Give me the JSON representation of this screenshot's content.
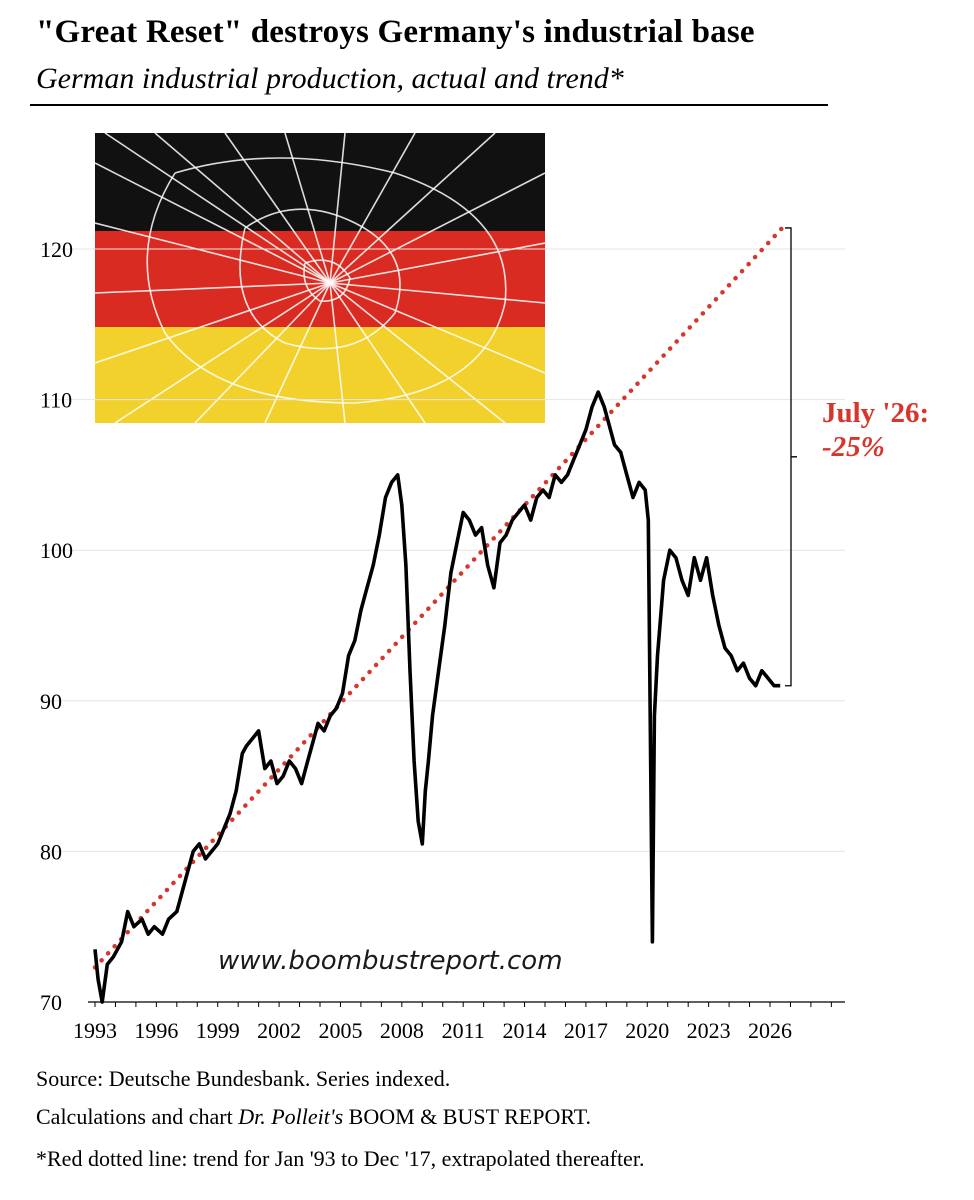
{
  "header": {
    "title": "\"Great Reset\" destroys Germany's industrial base",
    "subtitle": "German industrial production, actual and trend*"
  },
  "watermark": "www.boombustreport.com",
  "annotation": {
    "date": "July '26:",
    "change": "-25%"
  },
  "footer": {
    "source": "Source: Deutsche Bundesbank. Series indexed.",
    "calc_prefix": "Calculations and chart",
    "calc_author": "Dr. Polleit's",
    "calc_suffix": "BOOM & BUST REPORT.",
    "note": "*Red dotted line: trend for Jan '93 to Dec '17, extrapolated thereafter."
  },
  "colors": {
    "actual": "#000000",
    "trend": "#d6362b",
    "grid": "#e6e6e6",
    "flag_black": "#111111",
    "flag_red": "#d92b22",
    "flag_gold": "#f2d12c"
  },
  "chart_data": {
    "type": "line",
    "title": "German industrial production, actual and trend*",
    "xlabel": "",
    "ylabel": "",
    "xlim": [
      1993,
      2029
    ],
    "ylim": [
      70,
      127
    ],
    "yticks": [
      70,
      80,
      90,
      100,
      110,
      120
    ],
    "xticks": [
      1993,
      1996,
      1999,
      2002,
      2005,
      2008,
      2011,
      2014,
      2017,
      2020,
      2023,
      2026
    ],
    "grid": true,
    "series": [
      {
        "name": "actual",
        "style": "solid",
        "x": [
          1993.0,
          1993.15,
          1993.35,
          1993.6,
          1993.9,
          1994.3,
          1994.6,
          1994.9,
          1995.3,
          1995.6,
          1995.9,
          1996.3,
          1996.6,
          1997.0,
          1997.4,
          1997.8,
          1998.1,
          1998.4,
          1998.7,
          1999.0,
          1999.3,
          1999.6,
          1999.9,
          2000.2,
          2000.4,
          2000.7,
          2001.0,
          2001.3,
          2001.6,
          2001.9,
          2002.2,
          2002.5,
          2002.8,
          2003.1,
          2003.4,
          2003.7,
          2003.9,
          2004.2,
          2004.5,
          2004.8,
          2005.1,
          2005.4,
          2005.7,
          2006.0,
          2006.3,
          2006.6,
          2006.9,
          2007.2,
          2007.5,
          2007.8,
          2008.0,
          2008.2,
          2008.4,
          2008.6,
          2008.8,
          2009.0,
          2009.15,
          2009.3,
          2009.5,
          2009.8,
          2010.1,
          2010.4,
          2010.7,
          2011.0,
          2011.3,
          2011.6,
          2011.9,
          2012.2,
          2012.5,
          2012.8,
          2013.1,
          2013.4,
          2013.7,
          2014.0,
          2014.3,
          2014.6,
          2014.9,
          2015.2,
          2015.5,
          2015.8,
          2016.1,
          2016.4,
          2016.7,
          2017.0,
          2017.3,
          2017.6,
          2017.9,
          2018.1,
          2018.4,
          2018.7,
          2019.0,
          2019.3,
          2019.6,
          2019.9,
          2020.05,
          2020.25,
          2020.35,
          2020.5,
          2020.8,
          2021.1,
          2021.4,
          2021.7,
          2022.0,
          2022.3,
          2022.6,
          2022.9,
          2023.2,
          2023.5,
          2023.8,
          2024.1,
          2024.4,
          2024.7,
          2025.0,
          2025.3,
          2025.6,
          2025.9,
          2026.2,
          2026.5
        ],
        "y": [
          73.5,
          71.5,
          70.0,
          72.5,
          73.0,
          74.0,
          76.0,
          75.0,
          75.5,
          74.5,
          75.0,
          74.5,
          75.5,
          76.0,
          78.0,
          80.0,
          80.5,
          79.5,
          80.0,
          80.5,
          81.5,
          82.5,
          84.0,
          86.5,
          87.0,
          87.5,
          88.0,
          85.5,
          86.0,
          84.5,
          85.0,
          86.0,
          85.5,
          84.5,
          86.0,
          87.5,
          88.5,
          88.0,
          89.0,
          89.5,
          90.5,
          93.0,
          94.0,
          96.0,
          97.5,
          99.0,
          101.0,
          103.5,
          104.5,
          105.0,
          103.0,
          99.0,
          92.0,
          86.0,
          82.0,
          80.5,
          84.0,
          86.0,
          89.0,
          92.0,
          95.0,
          98.5,
          100.5,
          102.5,
          102.0,
          101.0,
          101.5,
          99.0,
          97.5,
          100.5,
          101.0,
          102.0,
          102.5,
          103.0,
          102.0,
          103.5,
          104.0,
          103.5,
          105.0,
          104.5,
          105.0,
          106.0,
          107.0,
          108.0,
          109.5,
          110.5,
          109.5,
          108.5,
          107.0,
          106.5,
          105.0,
          103.5,
          104.5,
          104.0,
          102.0,
          74.0,
          89.0,
          93.0,
          98.0,
          100.0,
          99.5,
          98.0,
          97.0,
          99.5,
          98.0,
          99.5,
          97.0,
          95.0,
          93.5,
          93.0,
          92.0,
          92.5,
          91.5,
          91.0,
          92.0,
          91.5,
          91.0,
          91.0
        ]
      },
      {
        "name": "trend",
        "style": "dotted",
        "x": [
          1993.0,
          2026.6
        ],
        "y": [
          72.3,
          121.4
        ]
      }
    ]
  }
}
